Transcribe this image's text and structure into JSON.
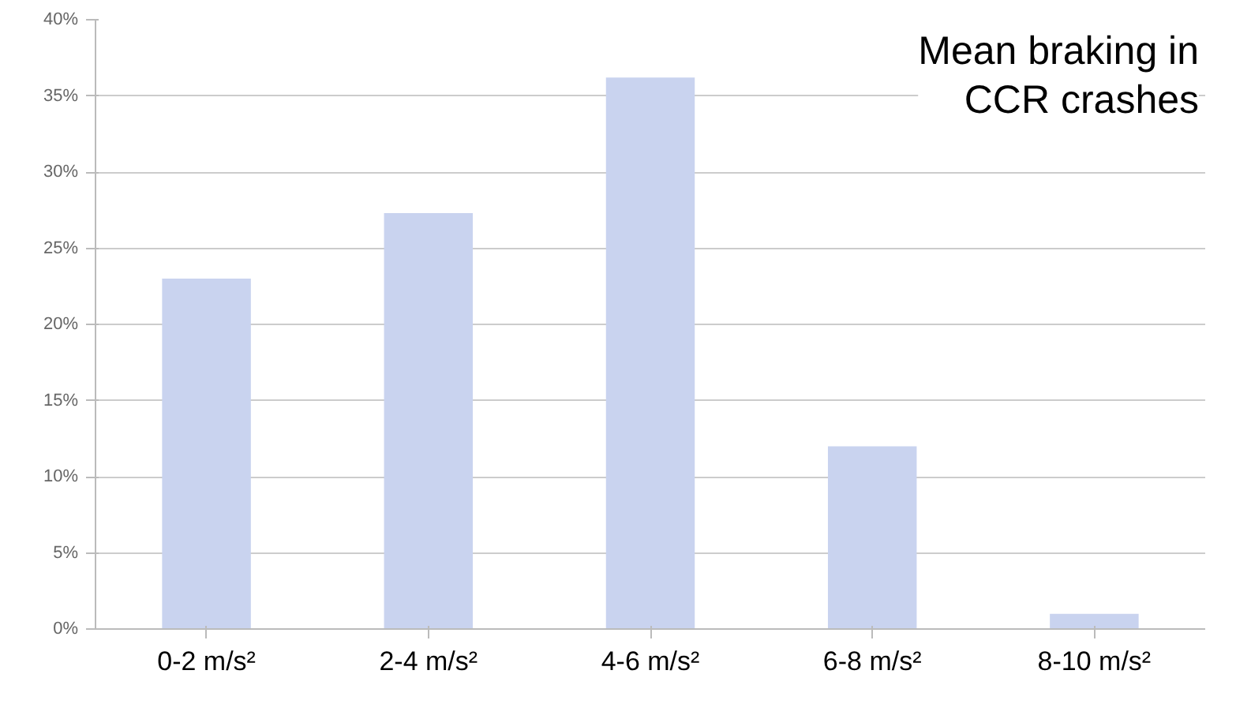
{
  "chart_data": {
    "type": "bar",
    "title": "Mean braking in\nCCR crashes",
    "categories": [
      "0-2 m/s²",
      "2-4 m/s²",
      "4-6 m/s²",
      "6-8 m/s²",
      "8-10 m/s²"
    ],
    "values": [
      23,
      27.3,
      36.2,
      12,
      1
    ],
    "color": "#c9d3ef",
    "ylim": [
      0,
      40
    ],
    "yticks": [
      {
        "value": 0,
        "label": "0%"
      },
      {
        "value": 5,
        "label": "5%"
      },
      {
        "value": 10,
        "label": "10%"
      },
      {
        "value": 15,
        "label": "15%"
      },
      {
        "value": 20,
        "label": "20%"
      },
      {
        "value": 25,
        "label": "25%"
      },
      {
        "value": 30,
        "label": "30%"
      },
      {
        "value": 35,
        "label": "35%"
      },
      {
        "value": 40,
        "label": "40%"
      }
    ],
    "grid": "y"
  }
}
